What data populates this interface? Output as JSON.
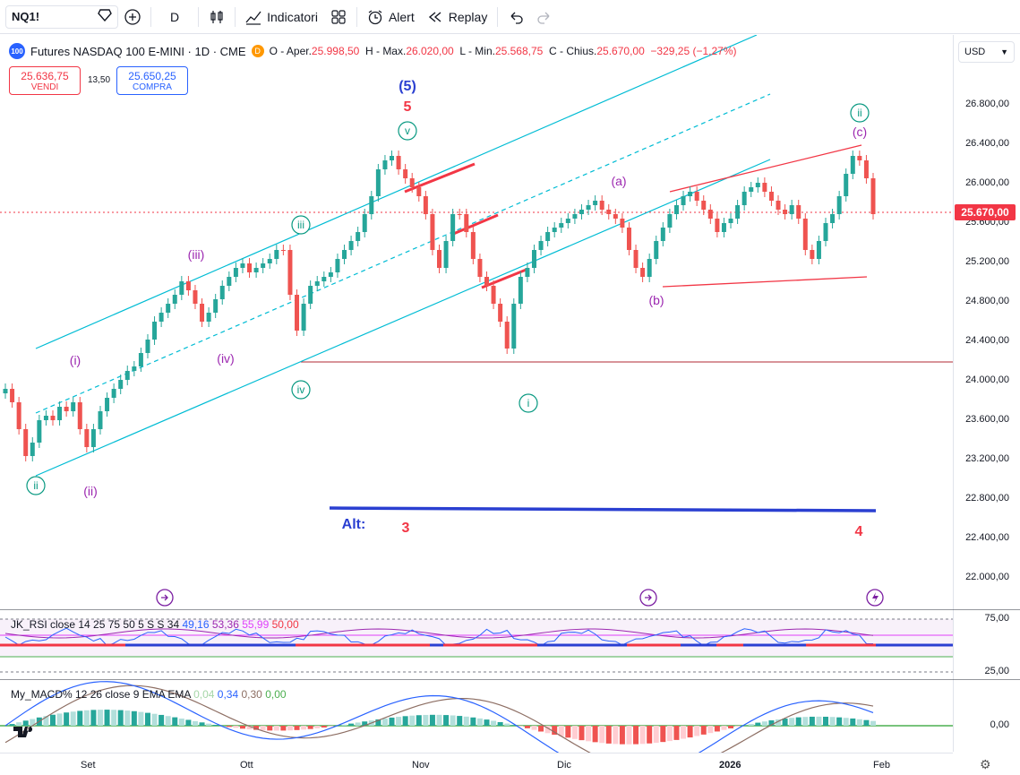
{
  "toolbar": {
    "symbol": "NQ1!",
    "interval": "D",
    "indicators_label": "Indicatori",
    "alert_label": "Alert",
    "replay_label": "Replay"
  },
  "legend": {
    "logo": "100",
    "title": "Futures NASDAQ 100 E-MINI · 1D · CME",
    "badge": "D",
    "open_label": "O - Aper.",
    "open": "25.998,50",
    "high_label": "H - Max.",
    "high": "26.020,00",
    "low_label": "L - Min.",
    "low": "25.568,75",
    "close_label": "C - Chius.",
    "close": "25.670,00",
    "change": "−329,25 (−1,27%)"
  },
  "trade": {
    "sell_price": "25.636,75",
    "sell_label": "VENDI",
    "spread": "13,50",
    "buy_price": "25.650,25",
    "buy_label": "COMPRA"
  },
  "currency": "USD",
  "last_price": "25.670,00",
  "price_ticks": [
    "26.800,00",
    "26.400,00",
    "26.000,00",
    "25.600,00",
    "25.200,00",
    "24.800,00",
    "24.400,00",
    "24.000,00",
    "23.600,00",
    "23.200,00",
    "22.800,00",
    "22.400,00",
    "22.000,00"
  ],
  "rsi": {
    "label": "JK_RSI close 14 25 75 50 5 S S 34",
    "v1": "49,16",
    "v2": "53,36",
    "v3": "55,99",
    "v4": "50,00",
    "ticks": [
      "75,00",
      "25,00"
    ]
  },
  "macd": {
    "label": "My_MACD% 12 26 close 9 EMA EMA",
    "v1": "0,04",
    "v2": "0,34",
    "v3": "0,30",
    "v4": "0,00",
    "tick": "0,00"
  },
  "time_labels": [
    "Set",
    "Ott",
    "Nov",
    "Dic",
    "2026",
    "Feb"
  ],
  "waves": {
    "w5_top": "(5)",
    "w5_red": "5",
    "v": "v",
    "iii_circle": "iii",
    "iv_circle": "iv",
    "ii_circle": "ii",
    "i_circle": "i",
    "ii_top_circle": "ii",
    "c": "(c)",
    "a": "(a)",
    "b": "(b)",
    "iii_purple": "(iii)",
    "i_purple": "(i)",
    "iv_purple": "(iv)",
    "ii_purple": "(ii)",
    "alt": "Alt:",
    "alt3": "3",
    "alt4": "4"
  },
  "colors": {
    "up": "#26a69a",
    "down": "#ef5350",
    "channel": "#00bcd4",
    "alt_line": "#2a3fd1",
    "wave_green": "#089981",
    "wave_purple": "#9c27b0",
    "wave_red": "#f23645"
  }
}
